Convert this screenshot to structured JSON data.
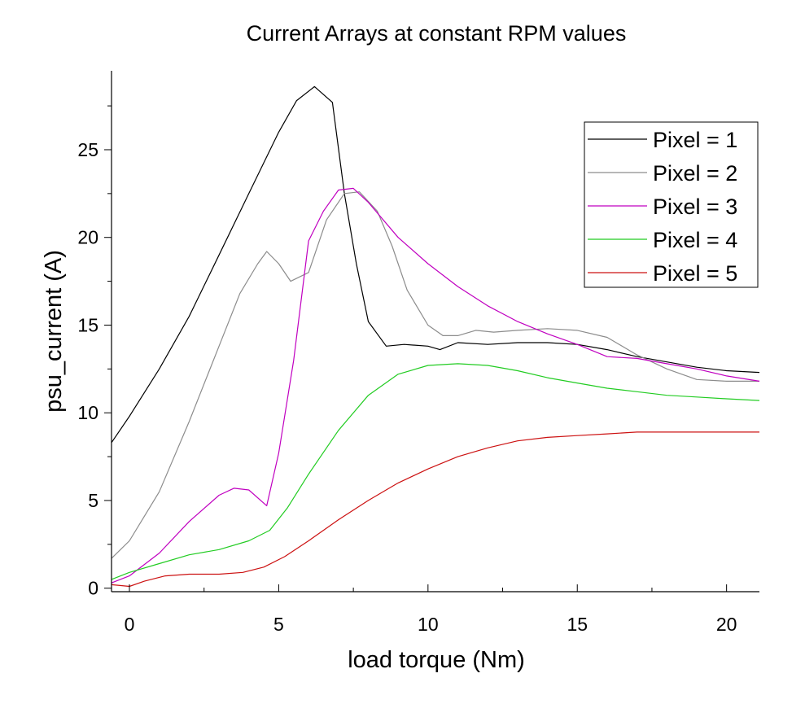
{
  "chart_data": {
    "type": "line",
    "title": "Current Arrays at constant RPM values",
    "xlabel": "load torque (Nm)",
    "ylabel": "psu_current (A)",
    "xlim": [
      -0.6,
      21.1
    ],
    "ylim": [
      -0.2,
      29.5
    ],
    "x_ticks": [
      0,
      5,
      10,
      15,
      20
    ],
    "x_minor_ticks": [
      2.5,
      7.5,
      12.5,
      17.5
    ],
    "y_ticks": [
      0,
      5,
      10,
      15,
      20,
      25
    ],
    "y_minor_ticks": [
      2.5,
      7.5,
      12.5,
      17.5,
      22.5,
      27.5
    ],
    "legend_position": "top-right",
    "grid": false,
    "series": [
      {
        "name": "Pixel = 1",
        "color": "#000000",
        "points": [
          [
            -0.6,
            8.3
          ],
          [
            0,
            9.8
          ],
          [
            1,
            12.5
          ],
          [
            2,
            15.5
          ],
          [
            3,
            19.0
          ],
          [
            4,
            22.5
          ],
          [
            5,
            26.0
          ],
          [
            5.6,
            27.8
          ],
          [
            6.2,
            28.6
          ],
          [
            6.8,
            27.7
          ],
          [
            7.2,
            22.5
          ],
          [
            7.6,
            18.5
          ],
          [
            8.0,
            15.2
          ],
          [
            8.6,
            13.8
          ],
          [
            9.2,
            13.9
          ],
          [
            10.0,
            13.8
          ],
          [
            10.4,
            13.6
          ],
          [
            11.0,
            14.0
          ],
          [
            12.0,
            13.9
          ],
          [
            13.0,
            14.0
          ],
          [
            14.0,
            14.0
          ],
          [
            15.0,
            13.9
          ],
          [
            16.0,
            13.6
          ],
          [
            17.0,
            13.2
          ],
          [
            18.0,
            12.9
          ],
          [
            19.0,
            12.6
          ],
          [
            20.0,
            12.4
          ],
          [
            21.1,
            12.3
          ]
        ]
      },
      {
        "name": "Pixel = 2",
        "color": "#8c8c8c",
        "points": [
          [
            -0.6,
            1.7
          ],
          [
            0,
            2.7
          ],
          [
            1,
            5.5
          ],
          [
            2,
            9.5
          ],
          [
            3,
            13.8
          ],
          [
            3.7,
            16.8
          ],
          [
            4.3,
            18.5
          ],
          [
            4.6,
            19.2
          ],
          [
            5.0,
            18.5
          ],
          [
            5.4,
            17.5
          ],
          [
            6.0,
            18.0
          ],
          [
            6.6,
            21.0
          ],
          [
            7.2,
            22.5
          ],
          [
            7.7,
            22.6
          ],
          [
            8.3,
            21.5
          ],
          [
            8.8,
            19.5
          ],
          [
            9.3,
            17.0
          ],
          [
            10.0,
            15.0
          ],
          [
            10.5,
            14.4
          ],
          [
            11.0,
            14.4
          ],
          [
            11.6,
            14.7
          ],
          [
            12.2,
            14.6
          ],
          [
            13.0,
            14.7
          ],
          [
            14.0,
            14.8
          ],
          [
            15.0,
            14.7
          ],
          [
            16.0,
            14.3
          ],
          [
            17.0,
            13.3
          ],
          [
            18.0,
            12.5
          ],
          [
            19.0,
            11.9
          ],
          [
            20.0,
            11.8
          ],
          [
            21.1,
            11.8
          ]
        ]
      },
      {
        "name": "Pixel = 3",
        "color": "#c000c0",
        "points": [
          [
            -0.6,
            0.3
          ],
          [
            0,
            0.7
          ],
          [
            1,
            2.0
          ],
          [
            2,
            3.8
          ],
          [
            3,
            5.3
          ],
          [
            3.5,
            5.7
          ],
          [
            4.0,
            5.6
          ],
          [
            4.6,
            4.7
          ],
          [
            5.0,
            7.7
          ],
          [
            5.5,
            13.0
          ],
          [
            6.0,
            19.8
          ],
          [
            6.5,
            21.5
          ],
          [
            7.0,
            22.7
          ],
          [
            7.5,
            22.8
          ],
          [
            8.0,
            22.0
          ],
          [
            9.0,
            20.0
          ],
          [
            10.0,
            18.5
          ],
          [
            11.0,
            17.2
          ],
          [
            12.0,
            16.1
          ],
          [
            13.0,
            15.2
          ],
          [
            14.0,
            14.5
          ],
          [
            15.0,
            13.9
          ],
          [
            16.0,
            13.2
          ],
          [
            17.0,
            13.1
          ],
          [
            18.0,
            12.8
          ],
          [
            19.0,
            12.5
          ],
          [
            20.0,
            12.1
          ],
          [
            21.1,
            11.8
          ]
        ]
      },
      {
        "name": "Pixel = 4",
        "color": "#22cc22",
        "points": [
          [
            -0.6,
            0.5
          ],
          [
            0,
            0.9
          ],
          [
            1,
            1.4
          ],
          [
            2,
            1.9
          ],
          [
            3,
            2.2
          ],
          [
            4,
            2.7
          ],
          [
            4.7,
            3.3
          ],
          [
            5.3,
            4.6
          ],
          [
            6.0,
            6.5
          ],
          [
            7.0,
            9.0
          ],
          [
            8.0,
            11.0
          ],
          [
            9.0,
            12.2
          ],
          [
            10.0,
            12.7
          ],
          [
            11.0,
            12.8
          ],
          [
            12.0,
            12.7
          ],
          [
            13.0,
            12.4
          ],
          [
            14.0,
            12.0
          ],
          [
            15.0,
            11.7
          ],
          [
            16.0,
            11.4
          ],
          [
            17.0,
            11.2
          ],
          [
            18.0,
            11.0
          ],
          [
            19.0,
            10.9
          ],
          [
            20.0,
            10.8
          ],
          [
            21.1,
            10.7
          ]
        ]
      },
      {
        "name": "Pixel = 5",
        "color": "#cc1111",
        "points": [
          [
            -0.6,
            0.2
          ],
          [
            0,
            0.1
          ],
          [
            0.5,
            0.4
          ],
          [
            1.2,
            0.7
          ],
          [
            2.0,
            0.8
          ],
          [
            3.0,
            0.8
          ],
          [
            3.8,
            0.9
          ],
          [
            4.5,
            1.2
          ],
          [
            5.2,
            1.8
          ],
          [
            6.0,
            2.7
          ],
          [
            7.0,
            3.9
          ],
          [
            8.0,
            5.0
          ],
          [
            9.0,
            6.0
          ],
          [
            10.0,
            6.8
          ],
          [
            11.0,
            7.5
          ],
          [
            12.0,
            8.0
          ],
          [
            13.0,
            8.4
          ],
          [
            14.0,
            8.6
          ],
          [
            15.0,
            8.7
          ],
          [
            16.0,
            8.8
          ],
          [
            17.0,
            8.9
          ],
          [
            18.0,
            8.9
          ],
          [
            19.0,
            8.9
          ],
          [
            20.0,
            8.9
          ],
          [
            21.1,
            8.9
          ]
        ]
      }
    ]
  }
}
